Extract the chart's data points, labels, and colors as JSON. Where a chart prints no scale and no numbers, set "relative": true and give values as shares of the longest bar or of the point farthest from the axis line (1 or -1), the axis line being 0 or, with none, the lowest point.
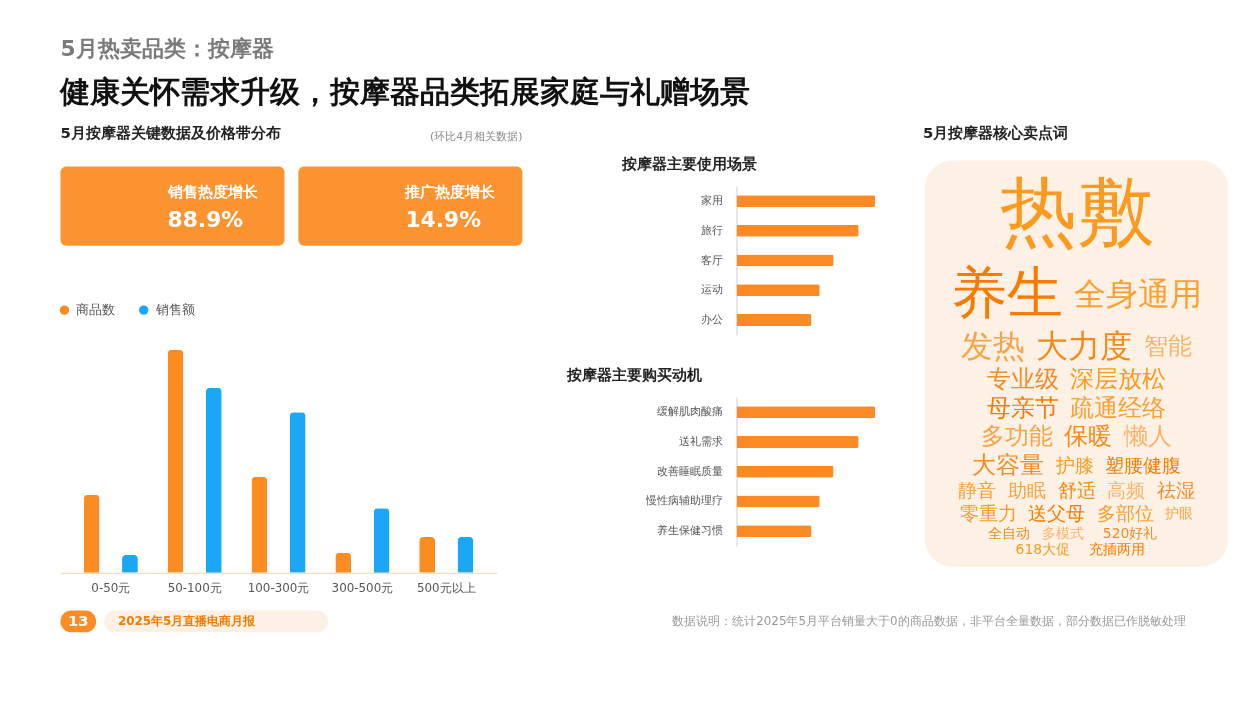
{
  "chart_data": [
    {
      "type": "other",
      "title": "5月热卖品类：按摩器",
      "subtitle": "健康关怀需求升级，按摩器品类拓展家庭与礼赠场景"
    },
    {
      "type": "other",
      "title": "5月按摩器关键数据及价格带分布",
      "subtitle": "(环比4月相关数据)",
      "annotations": [
        "销售热度增长",
        "88.9%",
        "推广热度增长",
        "14.9%"
      ]
    },
    {
      "type": "bar",
      "relative": true,
      "legend": "top left",
      "grid": false,
      "categories": [
        "0-50元",
        "50-100元",
        "100-300元",
        "300-500元",
        "500元以上"
      ],
      "series": [
        {
          "name": "商品数",
          "color": "#fb8c22",
          "values": [
            0.35,
            1,
            0.43,
            0.09,
            0.16
          ]
        },
        {
          "name": "销售额",
          "color": "#1aa7f5",
          "values": [
            0.08,
            0.83,
            0.72,
            0.29,
            0.16
          ]
        }
      ]
    },
    {
      "type": "bar",
      "orientation": "horizontal",
      "relative": true,
      "grid": false,
      "title": "按摩器主要使用场景",
      "categories": [
        "家用",
        "旅行",
        "客厅",
        "运动",
        "办公"
      ],
      "series": [
        {
          "color": "#fb8a25",
          "values": [
            1,
            0.88,
            0.7,
            0.6,
            0.54
          ]
        }
      ]
    },
    {
      "type": "bar",
      "orientation": "horizontal",
      "relative": true,
      "grid": false,
      "title": "按摩器主要购买动机",
      "categories": [
        "缓解肌肉酸痛",
        "送礼需求",
        "改善睡眠质量",
        "慢性病辅助理疗",
        "养生保健习惯"
      ],
      "series": [
        {
          "color": "#fb8a25",
          "values": [
            1,
            0.88,
            0.7,
            0.6,
            0.54
          ]
        }
      ]
    },
    {
      "type": "other",
      "title": "5月按摩器核心卖点词",
      "annotations": [
        "热敷",
        "养生",
        "全身通用",
        "发热",
        "大力度",
        "智能",
        "专业级",
        "深层放松",
        "母亲节",
        "疏通经络",
        "多功能",
        "保暖",
        "懒人",
        "大容量",
        "护膝",
        "塑腰健腹",
        "静音",
        "助眠",
        "舒适",
        "高频",
        "祛湿",
        "零重力",
        "送父母",
        "多部位",
        "护眼",
        "全自动",
        "多模式",
        "520好礼",
        "618大促",
        "充插两用"
      ]
    },
    {
      "type": "other",
      "annotations": [
        "13",
        "2025年5月直播电商月报",
        "数据说明：统计2025年5月平台销量大于0的商品数据，非平台全量数据，部分数据已作脱敏处理"
      ]
    }
  ]
}
